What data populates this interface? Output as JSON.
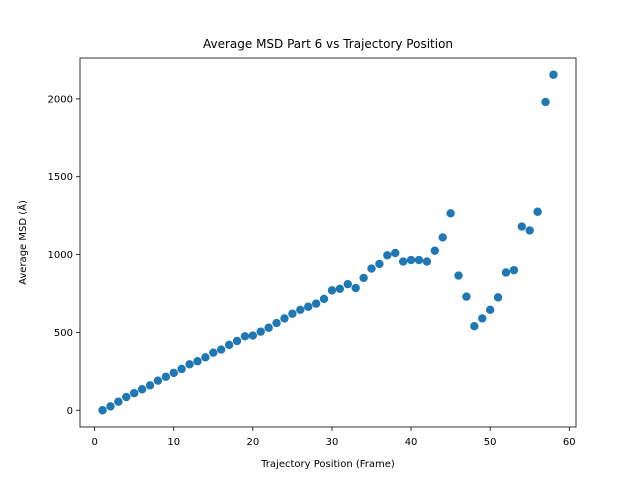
{
  "chart_data": {
    "type": "scatter",
    "title": "Average MSD Part 6 vs Trajectory Position",
    "xlabel": "Trajectory Position (Frame)",
    "ylabel": "Average MSD (Å)",
    "xlim": [
      -1.85,
      60.85
    ],
    "ylim": [
      -107.5,
      2262.5
    ],
    "xticks": [
      0,
      10,
      20,
      30,
      40,
      50,
      60
    ],
    "yticks": [
      0,
      500,
      1000,
      1500,
      2000
    ],
    "xtick_labels": [
      "0",
      "10",
      "20",
      "30",
      "40",
      "50",
      "60"
    ],
    "ytick_labels": [
      "0",
      "500",
      "1000",
      "1500",
      "2000"
    ],
    "marker_color": "#1f77b4",
    "grid": false,
    "legend": "none",
    "x": [
      1,
      2,
      3,
      4,
      5,
      6,
      7,
      8,
      9,
      10,
      11,
      12,
      13,
      14,
      15,
      16,
      17,
      18,
      19,
      20,
      21,
      22,
      23,
      24,
      25,
      26,
      27,
      28,
      29,
      30,
      31,
      32,
      33,
      34,
      35,
      36,
      37,
      38,
      39,
      40,
      41,
      42,
      43,
      44,
      45,
      46,
      47,
      48,
      49,
      50,
      51,
      52,
      53,
      54,
      55,
      56,
      57,
      58
    ],
    "y": [
      0,
      25,
      55,
      85,
      110,
      135,
      160,
      190,
      215,
      240,
      265,
      295,
      315,
      340,
      370,
      390,
      420,
      445,
      475,
      480,
      505,
      530,
      560,
      590,
      620,
      645,
      665,
      685,
      715,
      770,
      780,
      810,
      785,
      850,
      910,
      940,
      995,
      1010,
      955,
      965,
      965,
      955,
      1025,
      1110,
      1265,
      865,
      730,
      540,
      590,
      645,
      725,
      885,
      900,
      1180,
      1155,
      1275,
      1980,
      2155
    ]
  }
}
